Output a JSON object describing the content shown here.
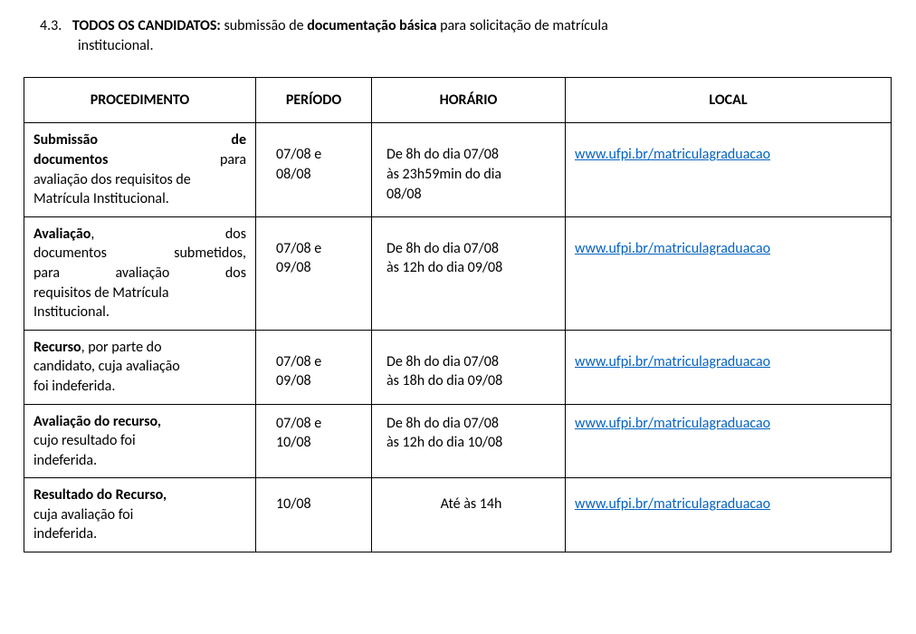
{
  "section": {
    "number": "4.3.",
    "bold_lead": "TODOS OS CANDIDATOS:",
    "mid_plain": " submissão de ",
    "mid_bold": "documentação básica",
    "tail": " para solicitação de matrícula",
    "line2": "institucional."
  },
  "table": {
    "headers": {
      "proc": "PROCEDIMENTO",
      "per": "PERÍODO",
      "hor": "HORÁRIO",
      "loc": "LOCAL"
    },
    "link_url": "www.ufpi.br/matriculagraduacao",
    "rows": [
      {
        "proc_lines": [
          {
            "type": "just",
            "left_bold": "Submissão",
            "right_bold": "de"
          },
          {
            "type": "just",
            "left_bold": "documentos",
            "right_plain": "para"
          },
          {
            "type": "plain",
            "text": "avaliação dos requisitos de"
          },
          {
            "type": "plain",
            "text": "Matrícula Institucional."
          }
        ],
        "periodo_l1": "07/08 e",
        "periodo_l2": "08/08",
        "horario_l1": "De 8h do dia 07/08",
        "horario_l2": "às 23h59min do dia",
        "horario_l3": "08/08"
      },
      {
        "proc_lines": [
          {
            "type": "just",
            "left_bold": "Avaliação",
            "left_bold_tail": ",",
            "right_plain": "dos"
          },
          {
            "type": "just",
            "left_plain": "documentos",
            "right_plain": "submetidos,"
          },
          {
            "type": "just",
            "left_plain": "para",
            "mid_plain": "avaliação",
            "right_plain": "dos"
          },
          {
            "type": "plain",
            "text": "requisitos de  Matrícula"
          },
          {
            "type": "plain",
            "text": "Institucional."
          }
        ],
        "periodo_l1": "07/08 e",
        "periodo_l2": "09/08",
        "horario_l1": "De 8h do dia 07/08",
        "horario_l2": "às 12h do dia 09/08"
      },
      {
        "proc_lines": [
          {
            "type": "mixed",
            "bold": "Recurso",
            "tail": ",  por  parte  do"
          },
          {
            "type": "plain",
            "text": "candidato, cuja avaliação"
          },
          {
            "type": "plain",
            "text": "foi indeferida."
          }
        ],
        "periodo_l1": "07/08 e",
        "periodo_l2": "09/08",
        "horario_l1": "De 8h do dia 07/08",
        "horario_l2": "às 18h do dia 09/08"
      },
      {
        "proc_lines": [
          {
            "type": "boldline",
            "text": "Avaliação do recurso,",
            "tail": ""
          },
          {
            "type": "plain",
            "text": "cujo resultado foi"
          },
          {
            "type": "plain",
            "text": "indeferida."
          }
        ],
        "periodo_l1": "07/08 e",
        "periodo_l2": "10/08",
        "horario_l1": "De 8h do dia 07/08",
        "horario_l2": "às 12h do dia 10/08"
      },
      {
        "proc_lines": [
          {
            "type": "boldline",
            "text": "Resultado do Recurso,",
            "tail": ""
          },
          {
            "type": "plain",
            "text": "cuja avaliação foi"
          },
          {
            "type": "plain",
            "text": "indeferida."
          }
        ],
        "periodo_l1": "10/08",
        "periodo_l2": "",
        "horario_center": "Até às 14h"
      }
    ]
  },
  "colors": {
    "text": "#000000",
    "link": "#0563c1",
    "border": "#000000",
    "background": "#ffffff"
  }
}
